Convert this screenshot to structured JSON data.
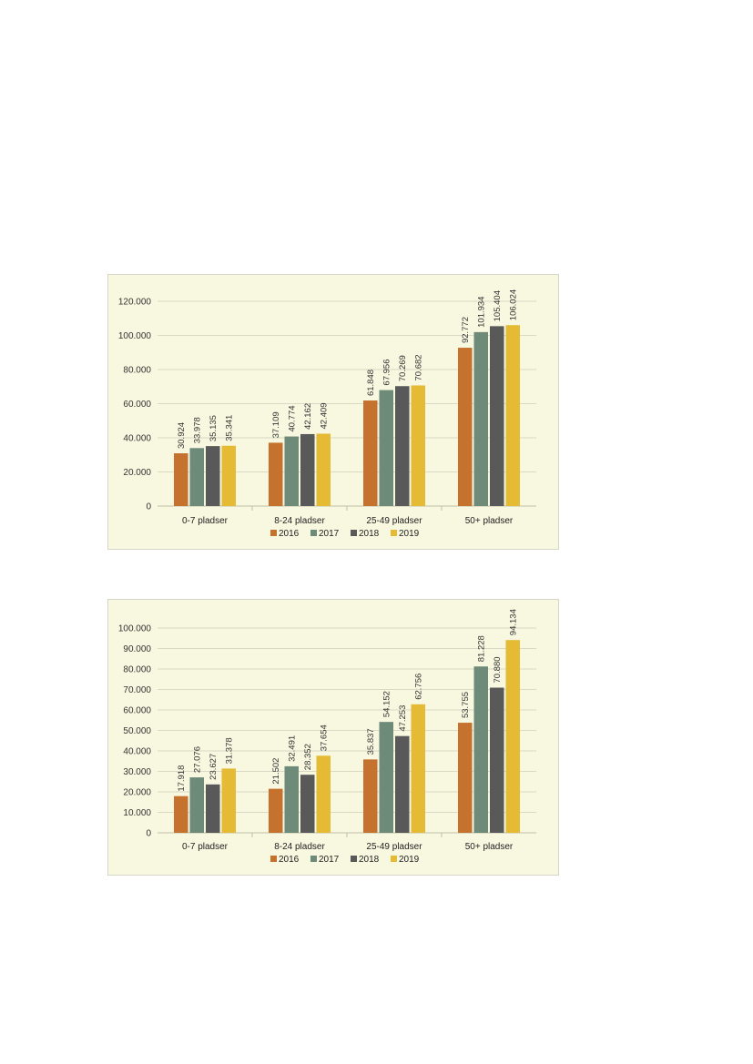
{
  "colors": {
    "2016": "#c5722f",
    "2017": "#6e8a78",
    "2018": "#595959",
    "2019": "#e5bb35",
    "grid": "#d9d9c5",
    "background": "#f8f7e0"
  },
  "chart_data": [
    {
      "type": "bar",
      "categories": [
        "0-7 pladser",
        "8-24 pladser",
        "25-49 pladser",
        "50+ pladser"
      ],
      "series": [
        {
          "name": "2016",
          "values": [
            30924,
            37109,
            61848,
            92772
          ],
          "labels": [
            "30.924",
            "37.109",
            "61.848",
            "92.772"
          ]
        },
        {
          "name": "2017",
          "values": [
            33978,
            40774,
            67956,
            101934
          ],
          "labels": [
            "33.978",
            "40.774",
            "67.956",
            "101.934"
          ]
        },
        {
          "name": "2018",
          "values": [
            35135,
            42162,
            70269,
            105404
          ],
          "labels": [
            "35.135",
            "42.162",
            "70.269",
            "105.404"
          ]
        },
        {
          "name": "2019",
          "values": [
            35341,
            42409,
            70682,
            106024
          ],
          "labels": [
            "35.341",
            "42.409",
            "70.682",
            "106.024"
          ]
        }
      ],
      "ylim": [
        0,
        120000
      ],
      "yticks": [
        0,
        20000,
        40000,
        60000,
        80000,
        100000,
        120000
      ],
      "ytick_labels": [
        "0",
        "20.000",
        "40.000",
        "60.000",
        "80.000",
        "100.000",
        "120.000"
      ],
      "grid": true,
      "legend": "bottom"
    },
    {
      "type": "bar",
      "categories": [
        "0-7 pladser",
        "8-24 pladser",
        "25-49 pladser",
        "50+ pladser"
      ],
      "series": [
        {
          "name": "2016",
          "values": [
            17918,
            21502,
            35837,
            53755
          ],
          "labels": [
            "17.918",
            "21.502",
            "35.837",
            "53.755"
          ]
        },
        {
          "name": "2017",
          "values": [
            27076,
            32491,
            54152,
            81228
          ],
          "labels": [
            "27.076",
            "32.491",
            "54.152",
            "81.228"
          ]
        },
        {
          "name": "2018",
          "values": [
            23627,
            28352,
            47253,
            70880
          ],
          "labels": [
            "23.627",
            "28.352",
            "47.253",
            "70.880"
          ]
        },
        {
          "name": "2019",
          "values": [
            31378,
            37654,
            62756,
            94134
          ],
          "labels": [
            "31.378",
            "37.654",
            "62.756",
            "94.134"
          ]
        }
      ],
      "ylim": [
        0,
        100000
      ],
      "yticks": [
        0,
        10000,
        20000,
        30000,
        40000,
        50000,
        60000,
        70000,
        80000,
        90000,
        100000
      ],
      "ytick_labels": [
        "0",
        "10.000",
        "20.000",
        "30.000",
        "40.000",
        "50.000",
        "60.000",
        "70.000",
        "80.000",
        "90.000",
        "100.000"
      ],
      "grid": true,
      "legend": "bottom"
    }
  ]
}
